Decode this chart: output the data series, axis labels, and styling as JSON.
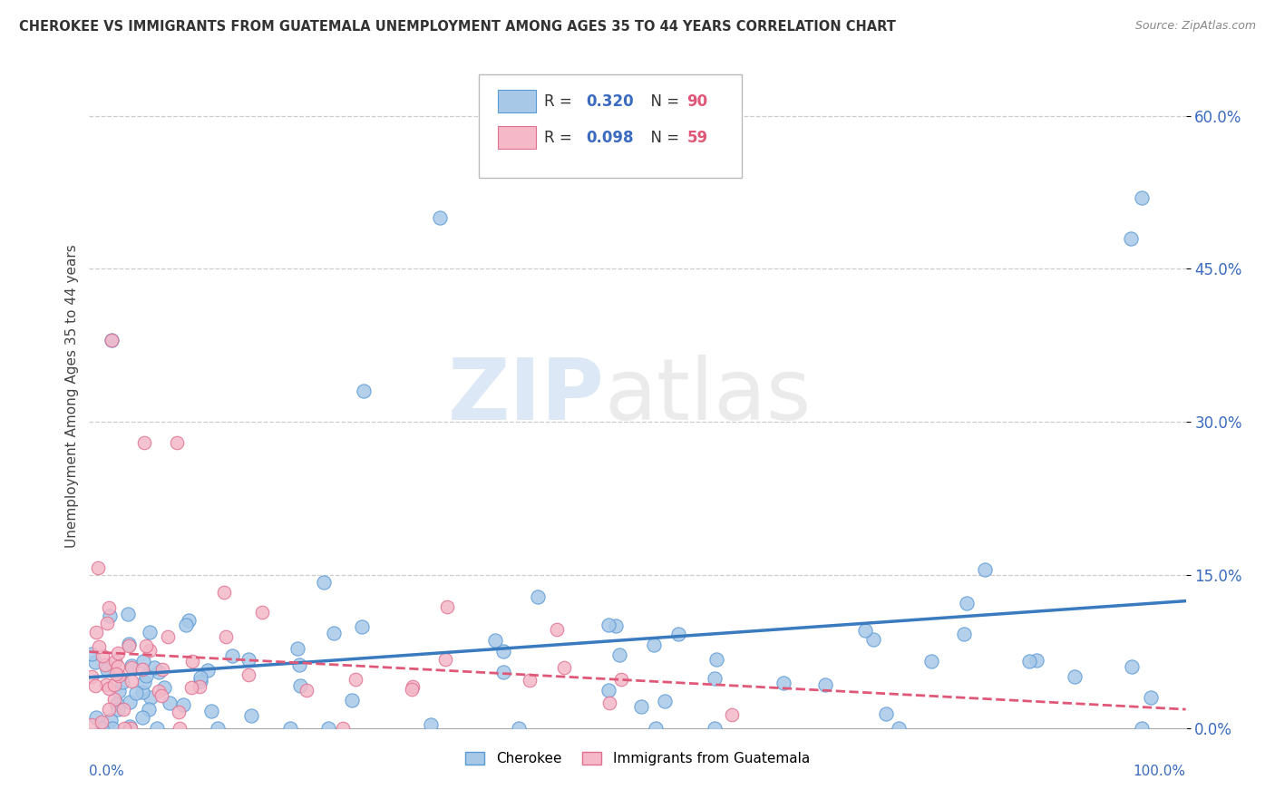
{
  "title": "CHEROKEE VS IMMIGRANTS FROM GUATEMALA UNEMPLOYMENT AMONG AGES 35 TO 44 YEARS CORRELATION CHART",
  "source": "Source: ZipAtlas.com",
  "ylabel": "Unemployment Among Ages 35 to 44 years",
  "xlim": [
    0,
    100
  ],
  "ylim": [
    0,
    65
  ],
  "yticks": [
    0,
    15,
    30,
    45,
    60
  ],
  "ytick_labels": [
    "0.0%",
    "15.0%",
    "30.0%",
    "45.0%",
    "60.0%"
  ],
  "cherokee_color": "#a8c8e8",
  "cherokee_edge": "#5b9bd5",
  "cherokee_line_color": "#3a7abf",
  "guatemala_color": "#f4b8c8",
  "guatemala_edge": "#e07090",
  "guatemala_line_color": "#e05878",
  "cherokee_R": 0.32,
  "cherokee_N": 90,
  "guatemala_R": 0.098,
  "guatemala_N": 59,
  "R_text_color": "#3a6bbf",
  "N_text_color": "#e05878",
  "background_color": "#ffffff",
  "watermark_zip_color": "#c5daf0",
  "watermark_atlas_color": "#d8d8d8"
}
